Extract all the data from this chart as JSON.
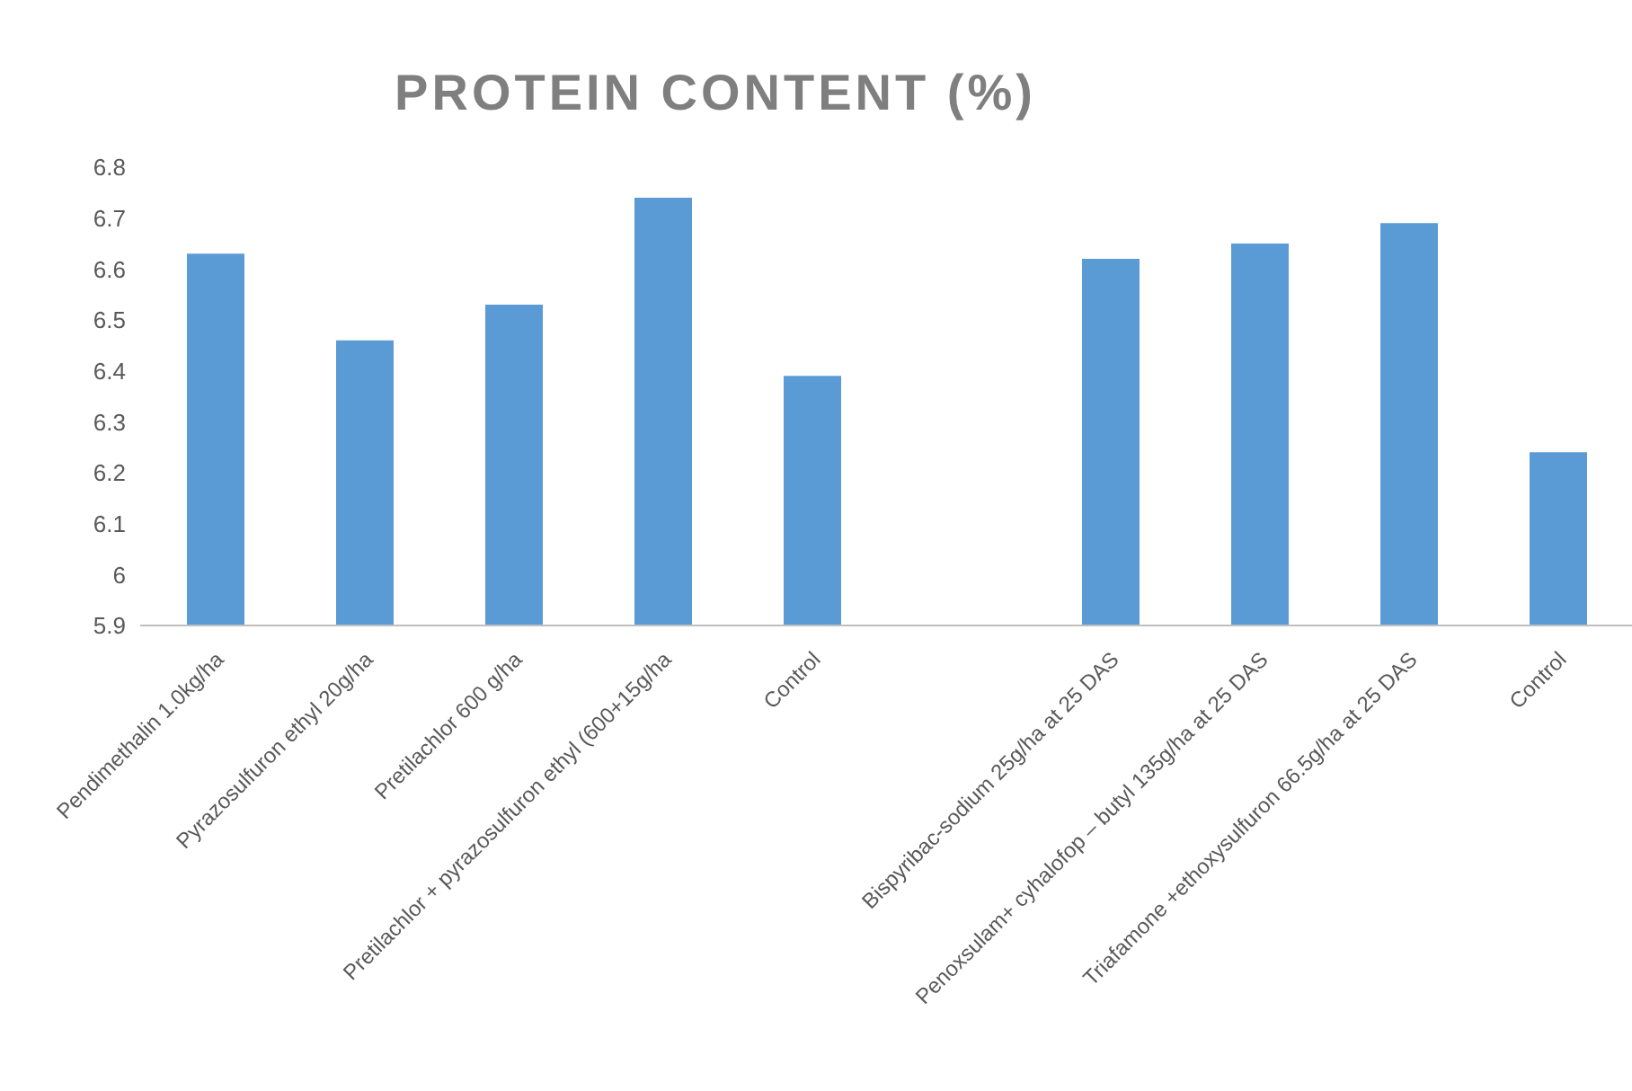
{
  "chart_data": {
    "type": "bar",
    "title": "PROTEIN CONTENT (%)",
    "categories": [
      "Pendimethalin 1.0kg/ha",
      "Pyrazosulfuron ethyl 20g/ha",
      "Pretilachlor 600 g/ha",
      "Pretilachlor + pyrazosulfuron ethyl (600+15g/ha",
      "Control",
      null,
      "Bispyribac-sodium 25g/ha at 25 DAS",
      "Penoxsulam+ cyhalofop – butyl 135g/ha at 25 DAS",
      "Triafamone +ethoxysulfuron 66.5g/ha at 25 DAS",
      "Control"
    ],
    "values": [
      6.63,
      6.46,
      6.53,
      6.74,
      6.39,
      null,
      6.62,
      6.65,
      6.69,
      6.24
    ],
    "color": "#5b9bd5",
    "ylim": [
      5.9,
      6.8
    ],
    "yticks": [
      5.9,
      6,
      6.1,
      6.2,
      6.3,
      6.4,
      6.5,
      6.6,
      6.7,
      6.8
    ],
    "grid": false,
    "legend": false
  }
}
